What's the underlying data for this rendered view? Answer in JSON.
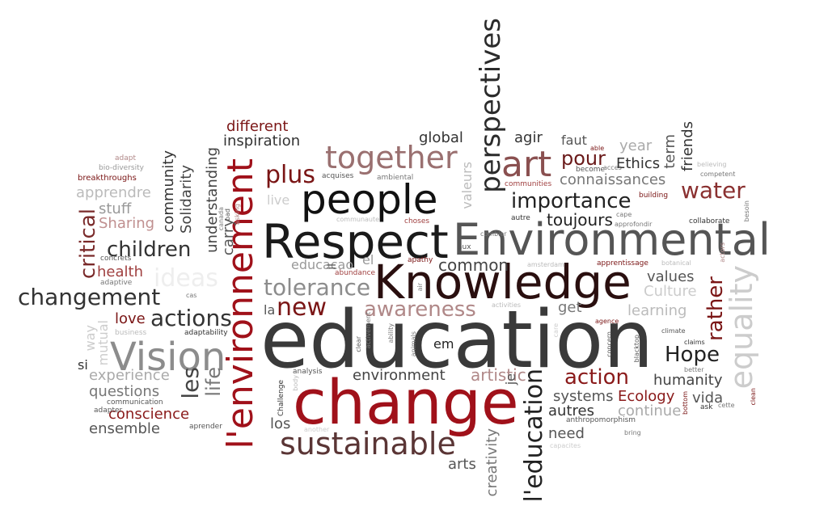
{
  "words": [
    {
      "text": "education",
      "color": "#3a3a3a",
      "orient": "h"
    },
    {
      "text": "change",
      "color": "#a0111a",
      "orient": "h"
    },
    {
      "text": "Knowledge",
      "color": "#2a0f0f",
      "orient": "h"
    },
    {
      "text": "Respect",
      "color": "#1a1a1a",
      "orient": "h"
    },
    {
      "text": "Environmental",
      "color": "#555555",
      "orient": "h"
    },
    {
      "text": "people",
      "color": "#111111",
      "orient": "h"
    },
    {
      "text": "l'environnement",
      "color": "#a0111a",
      "orient": "v"
    },
    {
      "text": "perspectives",
      "color": "#2b2b2b",
      "orient": "v"
    },
    {
      "text": "Vision",
      "color": "#8c8c8c",
      "orient": "h"
    },
    {
      "text": "sustainable",
      "color": "#5a3535",
      "orient": "h"
    },
    {
      "text": "together",
      "color": "#9a7070",
      "orient": "h"
    },
    {
      "text": "art",
      "color": "#8a5050",
      "orient": "h"
    },
    {
      "text": "importance",
      "color": "#222222",
      "orient": "h"
    },
    {
      "text": "tolerance",
      "color": "#8c8c8c",
      "orient": "h"
    },
    {
      "text": "awareness",
      "color": "#b08888",
      "orient": "h"
    },
    {
      "text": "new",
      "color": "#7a1515",
      "orient": "h"
    },
    {
      "text": "plus",
      "color": "#7a1515",
      "orient": "h"
    },
    {
      "text": "equality",
      "color": "#cccccc",
      "orient": "v"
    },
    {
      "text": "water",
      "color": "#8a3030",
      "orient": "h"
    },
    {
      "text": "changement",
      "color": "#333333",
      "orient": "h"
    },
    {
      "text": "children",
      "color": "#333333",
      "orient": "h"
    },
    {
      "text": "actions",
      "color": "#333333",
      "orient": "h"
    },
    {
      "text": "critical",
      "color": "#7a2a2a",
      "orient": "v"
    },
    {
      "text": "action",
      "color": "#8a1a1a",
      "orient": "h"
    },
    {
      "text": "Hope",
      "color": "#222222",
      "orient": "h"
    },
    {
      "text": "l'education",
      "color": "#222222",
      "orient": "v"
    },
    {
      "text": "les",
      "color": "#444444",
      "orient": "v"
    },
    {
      "text": "life",
      "color": "#777777",
      "orient": "v"
    },
    {
      "text": "rather",
      "color": "#7a1515",
      "orient": "v"
    },
    {
      "text": "pour",
      "color": "#6a1a1a",
      "orient": "h"
    },
    {
      "text": "connaissances",
      "color": "#777777",
      "orient": "h"
    },
    {
      "text": "Ethics",
      "color": "#333333",
      "orient": "h"
    },
    {
      "text": "toujours",
      "color": "#222222",
      "orient": "h"
    },
    {
      "text": "common",
      "color": "#444444",
      "orient": "h"
    },
    {
      "text": "environment",
      "color": "#444444",
      "orient": "h"
    },
    {
      "text": "artistic",
      "color": "#b08888",
      "orient": "h"
    },
    {
      "text": "systems",
      "color": "#555555",
      "orient": "h"
    },
    {
      "text": "Ecology",
      "color": "#8a1a1a",
      "orient": "h"
    },
    {
      "text": "humanity",
      "color": "#444444",
      "orient": "h"
    },
    {
      "text": "vida",
      "color": "#555555",
      "orient": "h"
    },
    {
      "text": "continue",
      "color": "#aaaaaa",
      "orient": "h"
    },
    {
      "text": "autres",
      "color": "#333333",
      "orient": "h"
    },
    {
      "text": "need",
      "color": "#555555",
      "orient": "h"
    },
    {
      "text": "conscience",
      "color": "#8a1a1a",
      "orient": "h"
    },
    {
      "text": "ensemble",
      "color": "#555555",
      "orient": "h"
    },
    {
      "text": "los",
      "color": "#555555",
      "orient": "h"
    },
    {
      "text": "arts",
      "color": "#555555",
      "orient": "h"
    },
    {
      "text": "creativity",
      "color": "#777777",
      "orient": "v"
    },
    {
      "text": "experience",
      "color": "#aaaaaa",
      "orient": "h"
    },
    {
      "text": "questions",
      "color": "#777777",
      "orient": "h"
    },
    {
      "text": "health",
      "color": "#a04040",
      "orient": "h"
    },
    {
      "text": "love",
      "color": "#7a1515",
      "orient": "h"
    },
    {
      "text": "Sharing",
      "color": "#c09090",
      "orient": "h"
    },
    {
      "text": "stuff",
      "color": "#999999",
      "orient": "h"
    },
    {
      "text": "apprendre",
      "color": "#bbbbbb",
      "orient": "h"
    },
    {
      "text": "community",
      "color": "#333333",
      "orient": "v"
    },
    {
      "text": "Solidarity",
      "color": "#444444",
      "orient": "v"
    },
    {
      "text": "understanding",
      "color": "#444444",
      "orient": "v"
    },
    {
      "text": "carry",
      "color": "#555555",
      "orient": "v"
    },
    {
      "text": "different",
      "color": "#7a1515",
      "orient": "h"
    },
    {
      "text": "inspiration",
      "color": "#333333",
      "orient": "h"
    },
    {
      "text": "global",
      "color": "#333333",
      "orient": "h"
    },
    {
      "text": "agir",
      "color": "#333333",
      "orient": "h"
    },
    {
      "text": "year",
      "color": "#aaaaaa",
      "orient": "h"
    },
    {
      "text": "term",
      "color": "#555555",
      "orient": "v"
    },
    {
      "text": "friends",
      "color": "#333333",
      "orient": "v"
    },
    {
      "text": "faut",
      "color": "#555555",
      "orient": "h"
    },
    {
      "text": "values",
      "color": "#555555",
      "orient": "h"
    },
    {
      "text": "Culture",
      "color": "#cccccc",
      "orient": "h"
    },
    {
      "text": "learning",
      "color": "#bbbbbb",
      "orient": "h"
    },
    {
      "text": "get",
      "color": "#777777",
      "orient": "h"
    },
    {
      "text": "em",
      "color": "#222222",
      "orient": "h"
    },
    {
      "text": "si",
      "color": "#333333",
      "orient": "h"
    },
    {
      "text": "la",
      "color": "#555555",
      "orient": "h"
    },
    {
      "text": "el",
      "color": "#999999",
      "orient": "h"
    },
    {
      "text": "educacao",
      "color": "#999999",
      "orient": "h"
    },
    {
      "text": "live",
      "color": "#cccccc",
      "orient": "h"
    },
    {
      "text": "way",
      "color": "#cccccc",
      "orient": "v"
    },
    {
      "text": "mutual",
      "color": "#cccccc",
      "orient": "v"
    },
    {
      "text": "valeurs",
      "color": "#bbbbbb",
      "orient": "v"
    },
    {
      "text": "je",
      "color": "#555555",
      "orient": "v"
    },
    {
      "text": "il",
      "color": "#555555",
      "orient": "v"
    },
    {
      "text": "ideas",
      "color": "#eeeeee",
      "orient": "h"
    },
    {
      "text": "adapt",
      "color": "#b08888",
      "orient": "h"
    },
    {
      "text": "bio-diversity",
      "color": "#999999",
      "orient": "h"
    },
    {
      "text": "breakthroughs",
      "color": "#7a1515",
      "orient": "h"
    },
    {
      "text": "concrets",
      "color": "#555555",
      "orient": "h"
    },
    {
      "text": "adaptive",
      "color": "#777777",
      "orient": "h"
    },
    {
      "text": "cas",
      "color": "#777777",
      "orient": "h"
    },
    {
      "text": "business",
      "color": "#bbbbbb",
      "orient": "h"
    },
    {
      "text": "adaptability",
      "color": "#333333",
      "orient": "h"
    },
    {
      "text": "communication",
      "color": "#555555",
      "orient": "h"
    },
    {
      "text": "adapter",
      "color": "#555555",
      "orient": "h"
    },
    {
      "text": "aprender",
      "color": "#555555",
      "orient": "h"
    },
    {
      "text": "acquises",
      "color": "#555555",
      "orient": "h"
    },
    {
      "text": "ambiental",
      "color": "#777777",
      "orient": "h"
    },
    {
      "text": "communaute",
      "color": "#bbbbbb",
      "orient": "h"
    },
    {
      "text": "abundance",
      "color": "#a04040",
      "orient": "h"
    },
    {
      "text": "choses",
      "color": "#a04040",
      "orient": "h"
    },
    {
      "text": "apathy",
      "color": "#7a1515",
      "orient": "h"
    },
    {
      "text": "aux",
      "color": "#555555",
      "orient": "h"
    },
    {
      "text": "autre",
      "color": "#333333",
      "orient": "h"
    },
    {
      "text": "become",
      "color": "#555555",
      "orient": "h"
    },
    {
      "text": "acces",
      "color": "#777777",
      "orient": "h"
    },
    {
      "text": "able",
      "color": "#7a1515",
      "orient": "h"
    },
    {
      "text": "communities",
      "color": "#a04040",
      "orient": "h"
    },
    {
      "text": "building",
      "color": "#7a1515",
      "orient": "h"
    },
    {
      "text": "cape",
      "color": "#777777",
      "orient": "h"
    },
    {
      "text": "approfondir",
      "color": "#777777",
      "orient": "h"
    },
    {
      "text": "combier",
      "color": "#777777",
      "orient": "h"
    },
    {
      "text": "collaborate",
      "color": "#333333",
      "orient": "h"
    },
    {
      "text": "believing",
      "color": "#bbbbbb",
      "orient": "h"
    },
    {
      "text": "competent",
      "color": "#777777",
      "orient": "h"
    },
    {
      "text": "besoin",
      "color": "#777777",
      "orient": "v"
    },
    {
      "text": "actors",
      "color": "#b08888",
      "orient": "v"
    },
    {
      "text": "botanical",
      "color": "#bbbbbb",
      "orient": "h"
    },
    {
      "text": "apprentissage",
      "color": "#7a1515",
      "orient": "h"
    },
    {
      "text": "amsterdam",
      "color": "#bbbbbb",
      "orient": "h"
    },
    {
      "text": "activities",
      "color": "#bbbbbb",
      "orient": "h"
    },
    {
      "text": "agence",
      "color": "#7a1515",
      "orient": "h"
    },
    {
      "text": "concern",
      "color": "#555555",
      "orient": "v"
    },
    {
      "text": "blacktop",
      "color": "#555555",
      "orient": "v"
    },
    {
      "text": "climate",
      "color": "#555555",
      "orient": "h"
    },
    {
      "text": "claims",
      "color": "#333333",
      "orient": "h"
    },
    {
      "text": "better",
      "color": "#777777",
      "orient": "h"
    },
    {
      "text": "bottom",
      "color": "#7a1515",
      "orient": "v"
    },
    {
      "text": "ask",
      "color": "#333333",
      "orient": "h"
    },
    {
      "text": "cette",
      "color": "#777777",
      "orient": "h"
    },
    {
      "text": "clean",
      "color": "#7a1515",
      "orient": "v"
    },
    {
      "text": "anthropomorphism",
      "color": "#555555",
      "orient": "h"
    },
    {
      "text": "bring",
      "color": "#777777",
      "orient": "h"
    },
    {
      "text": "capacites",
      "color": "#cccccc",
      "orient": "h"
    },
    {
      "text": "another",
      "color": "#cccccc",
      "orient": "h"
    },
    {
      "text": "Challenge",
      "color": "#333333",
      "orient": "v"
    },
    {
      "text": "analysis",
      "color": "#555555",
      "orient": "h"
    },
    {
      "text": "body",
      "color": "#bbbbbb",
      "orient": "v"
    },
    {
      "text": "clear",
      "color": "#555555",
      "orient": "v"
    },
    {
      "text": "activement",
      "color": "#777777",
      "orient": "v"
    },
    {
      "text": "ability",
      "color": "#777777",
      "orient": "v"
    },
    {
      "text": "animals",
      "color": "#777777",
      "orient": "v"
    },
    {
      "text": "air",
      "color": "#777777",
      "orient": "v"
    },
    {
      "text": "canada",
      "color": "#777777",
      "orient": "v"
    },
    {
      "text": "bad",
      "color": "#555555",
      "orient": "v"
    },
    {
      "text": "asking",
      "color": "#b08888",
      "orient": "v"
    },
    {
      "text": "care",
      "color": "#cccccc",
      "orient": "v"
    }
  ]
}
